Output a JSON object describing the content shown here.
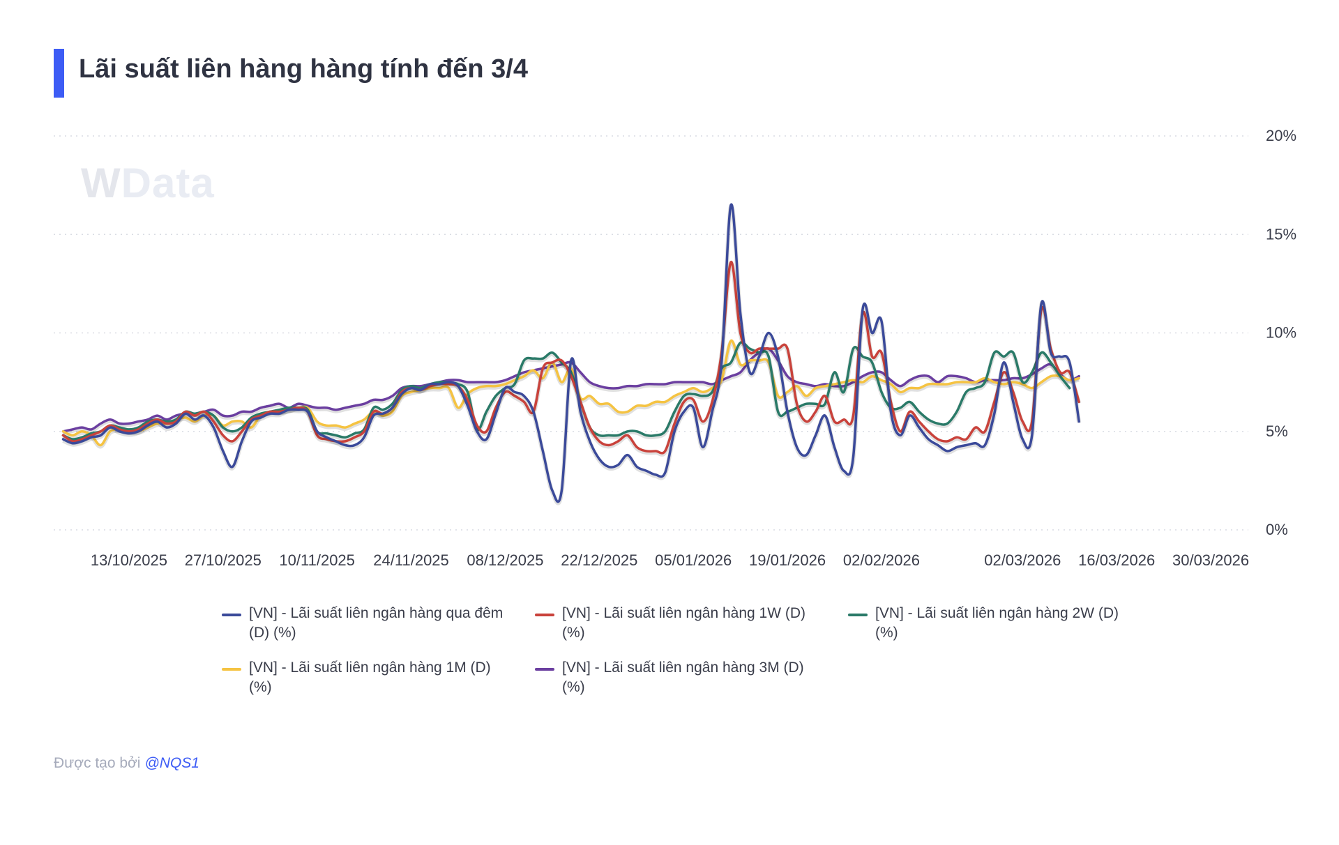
{
  "header": {
    "title": "Lãi suất liên hàng hàng tính đến 3/4"
  },
  "watermark": {
    "w": "W",
    "rest": "Data"
  },
  "footer": {
    "created_by": "Được tạo bởi",
    "handle": "@NQS1"
  },
  "chart_data": {
    "type": "line",
    "title": "Lãi suất liên hàng hàng tính đến 3/4",
    "xlabel": "",
    "ylabel": "",
    "ylim": [
      0,
      20
    ],
    "y_ticks": [
      {
        "value": 20,
        "label": "20%"
      },
      {
        "value": 15,
        "label": "15%"
      },
      {
        "value": 10,
        "label": "10%"
      },
      {
        "value": 5,
        "label": "5%"
      },
      {
        "value": 0,
        "label": "0%"
      }
    ],
    "grid": "horizontal-dotted",
    "legend_position": "bottom",
    "x_tick_labels": [
      "13/10/2025",
      "27/10/2025",
      "10/11/2025",
      "24/11/2025",
      "08/12/2025",
      "22/12/2025",
      "05/01/2026",
      "19/01/2026",
      "02/02/2026",
      "02/03/2026",
      "16/03/2026",
      "30/03/2026"
    ],
    "x_tick_positions": [
      7,
      17,
      27,
      37,
      47,
      57,
      67,
      77,
      87,
      102,
      112,
      122
    ],
    "x_range": [
      -1,
      126
    ],
    "series": [
      {
        "name": "[VN] - Lãi suất liên ngân hàng qua đêm (D) (%)",
        "color": "#3b4a9a",
        "values": [
          4.6,
          4.4,
          4.5,
          4.7,
          4.8,
          5.2,
          5.0,
          4.9,
          5.0,
          5.3,
          5.5,
          5.2,
          5.4,
          5.9,
          5.6,
          5.8,
          5.2,
          4.0,
          3.2,
          4.5,
          5.5,
          5.7,
          5.9,
          5.9,
          6.1,
          6.1,
          6.0,
          5.0,
          4.7,
          4.5,
          4.3,
          4.3,
          4.7,
          5.8,
          5.9,
          6.2,
          6.9,
          7.2,
          7.1,
          7.4,
          7.4,
          7.5,
          7.3,
          6.3,
          5.0,
          4.6,
          5.9,
          7.2,
          7.0,
          6.8,
          6.0,
          4.0,
          2.0,
          2.0,
          8.6,
          6.0,
          4.5,
          3.6,
          3.2,
          3.3,
          3.8,
          3.2,
          3.0,
          2.8,
          2.9,
          5.0,
          6.0,
          6.2,
          4.2,
          6.0,
          8.5,
          16.5,
          11.0,
          8.0,
          8.8,
          10.0,
          8.8,
          6.0,
          4.2,
          3.8,
          4.8,
          5.8,
          4.2,
          3.0,
          3.7,
          11.2,
          10.0,
          10.6,
          6.0,
          4.8,
          5.8,
          5.2,
          4.6,
          4.3,
          4.0,
          4.2,
          4.3,
          4.4,
          4.3,
          5.9,
          8.5,
          6.5,
          4.6,
          4.8,
          11.5,
          9.0,
          8.8,
          8.5,
          5.5
        ]
      },
      {
        "name": "[VN] - Lãi suất liên ngân hàng 1W (D) (%)",
        "color": "#c9423b",
        "values": [
          4.8,
          4.5,
          4.6,
          4.8,
          5.0,
          5.3,
          5.1,
          5.0,
          5.1,
          5.4,
          5.6,
          5.4,
          5.5,
          6.0,
          5.8,
          6.0,
          5.5,
          4.8,
          4.5,
          5.0,
          5.6,
          5.8,
          6.0,
          6.0,
          6.1,
          6.2,
          6.0,
          4.8,
          4.6,
          4.5,
          4.5,
          4.7,
          5.0,
          6.0,
          5.9,
          6.2,
          7.0,
          7.2,
          7.1,
          7.3,
          7.4,
          7.4,
          7.3,
          6.6,
          5.3,
          5.0,
          6.2,
          7.0,
          6.8,
          6.5,
          6.0,
          8.2,
          8.5,
          8.6,
          7.8,
          6.5,
          5.2,
          4.5,
          4.3,
          4.5,
          4.8,
          4.2,
          4.0,
          4.0,
          4.0,
          5.4,
          6.5,
          6.6,
          5.5,
          6.5,
          9.0,
          13.6,
          10.0,
          9.0,
          9.2,
          9.2,
          9.2,
          9.2,
          6.4,
          5.5,
          6.0,
          6.8,
          5.5,
          5.6,
          5.8,
          11.0,
          8.8,
          9.0,
          6.5,
          5.0,
          6.0,
          5.5,
          5.0,
          4.6,
          4.5,
          4.7,
          4.6,
          5.2,
          5.0,
          6.5,
          8.0,
          7.0,
          5.5,
          5.5,
          11.2,
          9.2,
          8.0,
          8.0,
          6.5
        ]
      },
      {
        "name": "[VN] - Lãi suất liên ngân hàng 2W (D) (%)",
        "color": "#2a7a68",
        "values": [
          4.8,
          4.6,
          4.7,
          4.9,
          5.0,
          5.3,
          5.2,
          5.1,
          5.2,
          5.5,
          5.6,
          5.5,
          5.6,
          6.0,
          5.9,
          6.0,
          5.8,
          5.2,
          5.0,
          5.2,
          5.7,
          5.9,
          6.0,
          6.1,
          6.2,
          6.2,
          6.1,
          5.0,
          4.9,
          4.8,
          4.7,
          4.9,
          5.1,
          6.2,
          6.1,
          6.4,
          7.1,
          7.3,
          7.2,
          7.4,
          7.5,
          7.5,
          7.4,
          7.0,
          5.1,
          6.0,
          6.8,
          7.2,
          7.4,
          8.6,
          8.7,
          8.7,
          9.0,
          8.5,
          8.0,
          6.5,
          5.2,
          4.8,
          4.8,
          4.8,
          5.0,
          5.0,
          4.8,
          4.8,
          5.0,
          6.0,
          6.8,
          6.9,
          6.8,
          7.0,
          8.2,
          8.5,
          9.5,
          9.2,
          9.0,
          8.8,
          6.0,
          6.0,
          6.2,
          6.4,
          6.4,
          6.4,
          8.0,
          7.0,
          9.2,
          8.8,
          8.5,
          7.0,
          6.2,
          6.2,
          6.5,
          6.0,
          5.6,
          5.4,
          5.4,
          6.0,
          7.0,
          7.2,
          7.5,
          9.0,
          8.8,
          9.0,
          7.5,
          8.0,
          9.0,
          8.5,
          7.8,
          7.2
        ]
      },
      {
        "name": "[VN] - Lãi suất liên ngân hàng 1M (D) (%)",
        "color": "#f5c342",
        "values": [
          5.0,
          4.8,
          5.0,
          4.8,
          4.3,
          5.0,
          5.1,
          5.0,
          5.0,
          5.2,
          5.4,
          5.4,
          5.6,
          5.7,
          5.5,
          5.8,
          5.8,
          5.3,
          5.5,
          5.5,
          5.2,
          5.8,
          6.0,
          6.0,
          6.1,
          6.2,
          6.2,
          5.5,
          5.3,
          5.3,
          5.2,
          5.4,
          5.6,
          6.0,
          5.8,
          6.0,
          6.8,
          7.0,
          7.1,
          7.2,
          7.2,
          7.2,
          6.2,
          6.9,
          7.2,
          7.3,
          7.3,
          7.4,
          7.6,
          7.8,
          8.1,
          7.7,
          8.5,
          7.5,
          8.2,
          6.7,
          6.8,
          6.4,
          6.4,
          6.0,
          6.0,
          6.3,
          6.3,
          6.5,
          6.5,
          6.8,
          7.0,
          7.2,
          7.0,
          7.2,
          7.6,
          9.6,
          8.4,
          8.6,
          8.6,
          8.5,
          6.8,
          7.0,
          7.3,
          6.8,
          7.2,
          7.3,
          7.4,
          7.5,
          7.6,
          7.5,
          7.8,
          7.6,
          7.4,
          7.0,
          7.2,
          7.2,
          7.4,
          7.4,
          7.4,
          7.5,
          7.5,
          7.5,
          7.7,
          7.5,
          7.4,
          7.5,
          7.4,
          7.2,
          7.5,
          7.8,
          7.8,
          7.6,
          7.7
        ]
      },
      {
        "name": "[VN] - Lãi suất liên ngân hàng 3M (D) (%)",
        "color": "#6b3fa0",
        "values": [
          5.0,
          5.1,
          5.2,
          5.1,
          5.4,
          5.6,
          5.4,
          5.4,
          5.5,
          5.6,
          5.8,
          5.6,
          5.8,
          5.9,
          5.9,
          6.0,
          6.1,
          5.8,
          5.8,
          6.0,
          6.0,
          6.2,
          6.3,
          6.4,
          6.2,
          6.4,
          6.3,
          6.2,
          6.2,
          6.1,
          6.2,
          6.3,
          6.4,
          6.6,
          6.6,
          6.8,
          7.2,
          7.3,
          7.3,
          7.4,
          7.5,
          7.6,
          7.6,
          7.5,
          7.5,
          7.5,
          7.5,
          7.6,
          7.8,
          8.0,
          8.1,
          8.2,
          8.3,
          8.4,
          8.5,
          8.0,
          7.5,
          7.3,
          7.2,
          7.2,
          7.3,
          7.3,
          7.4,
          7.4,
          7.4,
          7.5,
          7.5,
          7.5,
          7.5,
          7.4,
          7.6,
          7.8,
          8.0,
          8.6,
          9.0,
          9.2,
          8.6,
          7.8,
          7.5,
          7.4,
          7.3,
          7.4,
          7.3,
          7.3,
          7.5,
          7.8,
          8.0,
          8.0,
          7.6,
          7.3,
          7.6,
          7.8,
          7.8,
          7.5,
          7.8,
          7.8,
          7.7,
          7.5,
          7.6,
          7.6,
          7.6,
          7.7,
          7.7,
          7.9,
          8.2,
          8.4,
          7.9,
          7.6,
          7.8
        ]
      }
    ]
  }
}
